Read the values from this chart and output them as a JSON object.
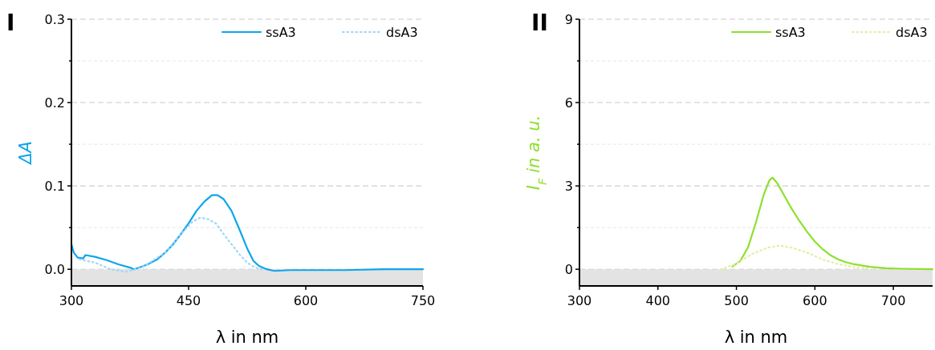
{
  "chart_data": [
    {
      "type": "line",
      "title": "I",
      "xlabel": "λ in nm",
      "ylabel": "ΔA",
      "xlim": [
        300,
        750
      ],
      "xticks": [
        300,
        450,
        600,
        750
      ],
      "ylim": [
        -0.02,
        0.3
      ],
      "yticks": [
        {
          "value": 0,
          "label": "0.0"
        },
        {
          "value": 0.05,
          "label": null
        },
        {
          "value": 0.1,
          "label": "0.1"
        },
        {
          "value": 0.15,
          "label": null
        },
        {
          "value": 0.2,
          "label": "0.2"
        },
        {
          "value": 0.25,
          "label": null
        },
        {
          "value": 0.3,
          "label": "0.3"
        }
      ],
      "grid": "y",
      "legend": "top right",
      "bands": [
        {
          "axis": "y",
          "from": -0.02,
          "to": 0,
          "color": "#e3e3e3"
        }
      ],
      "series": [
        {
          "name": "ssA3",
          "color": "#0ea5ec",
          "line_style": "solid",
          "x": [
            300,
            303,
            308,
            315,
            318,
            330,
            345,
            360,
            375,
            380,
            390,
            400,
            410,
            420,
            430,
            440,
            450,
            460,
            470,
            480,
            487,
            495,
            505,
            515,
            525,
            533,
            540,
            550,
            560,
            580,
            600,
            650,
            700,
            750
          ],
          "values": [
            0.03,
            0.02,
            0.014,
            0.013,
            0.017,
            0.015,
            0.011,
            0.006,
            0.002,
            0.0,
            0.003,
            0.007,
            0.012,
            0.02,
            0.03,
            0.042,
            0.055,
            0.07,
            0.081,
            0.089,
            0.089,
            0.084,
            0.07,
            0.048,
            0.025,
            0.01,
            0.004,
            0.0,
            -0.002,
            -0.001,
            -0.001,
            -0.001,
            0.0,
            0.0
          ]
        },
        {
          "name": "dsA3",
          "color": "#9fd6f5",
          "line_style": "dotted",
          "x": [
            310,
            330,
            350,
            370,
            390,
            420,
            440,
            455,
            465,
            475,
            485,
            495,
            505,
            515,
            525,
            535,
            545
          ],
          "values": [
            0.012,
            0.008,
            0.0,
            -0.003,
            0.002,
            0.02,
            0.042,
            0.057,
            0.062,
            0.06,
            0.055,
            0.042,
            0.03,
            0.018,
            0.008,
            0.002,
            0.0
          ]
        }
      ]
    },
    {
      "type": "line",
      "title": "II",
      "xlabel": "λ in nm",
      "ylabel": "I$_{F}$ in a. u.",
      "xlim": [
        300,
        750
      ],
      "xticks": [
        300,
        400,
        500,
        600,
        700
      ],
      "ylim": [
        -0.6,
        9
      ],
      "yticks": [
        0,
        {
          "value": 1.5,
          "label": null
        },
        3,
        {
          "value": 4.5,
          "label": null
        },
        6,
        {
          "value": 7.5,
          "label": null
        },
        9
      ],
      "grid": "y",
      "legend": "top right",
      "bands": [
        {
          "axis": "y",
          "from": -0.6,
          "to": 0,
          "color": "#e3e3e3"
        }
      ],
      "series": [
        {
          "name": "ssA3",
          "color": "#8ee02c",
          "line_style": "solid",
          "x": [
            495,
            505,
            515,
            525,
            535,
            542,
            546,
            552,
            560,
            570,
            580,
            590,
            600,
            610,
            620,
            630,
            640,
            650,
            670,
            690,
            710,
            750
          ],
          "values": [
            0.1,
            0.3,
            0.8,
            1.7,
            2.7,
            3.2,
            3.3,
            3.1,
            2.7,
            2.2,
            1.75,
            1.35,
            1.0,
            0.72,
            0.5,
            0.35,
            0.25,
            0.18,
            0.09,
            0.04,
            0.02,
            0.0
          ]
        },
        {
          "name": "dsA3",
          "color": "#e4eea0",
          "line_style": "dotted",
          "x": [
            480,
            500,
            520,
            540,
            555,
            570,
            590,
            610,
            630,
            650,
            670
          ],
          "values": [
            0.0,
            0.2,
            0.55,
            0.78,
            0.85,
            0.78,
            0.6,
            0.35,
            0.18,
            0.08,
            0.02
          ]
        }
      ]
    }
  ]
}
